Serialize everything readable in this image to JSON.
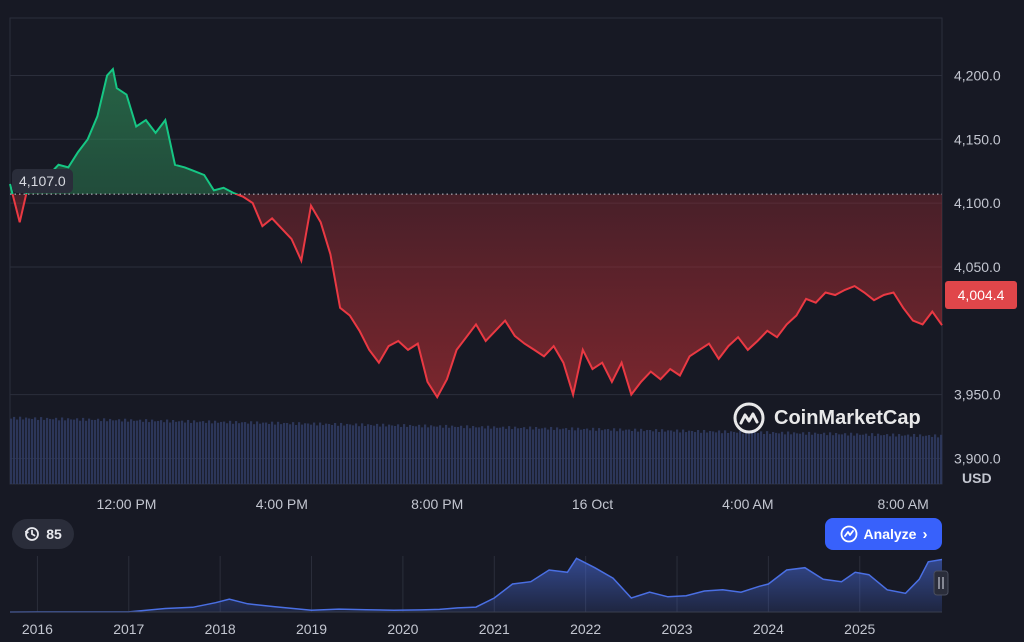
{
  "chart_data": [
    {
      "type": "line",
      "title": "",
      "reference_value": 4107.0,
      "reference_label": "4,107.0",
      "last_value_label": "4,004.4",
      "currency_label": "USD",
      "ylim": [
        3880,
        4245
      ],
      "y_ticks": [
        "4,200.0",
        "4,150.0",
        "4,100.0",
        "4,050.0",
        "3,950.0",
        "3,900.0"
      ],
      "y_tick_values": [
        4200,
        4150,
        4100,
        4050,
        3950,
        3900
      ],
      "x_ticks": [
        "12:00 PM",
        "4:00 PM",
        "8:00 PM",
        "16 Oct",
        "4:00 AM",
        "8:00 AM"
      ],
      "x_tick_hours": [
        12,
        16,
        20,
        24,
        28,
        32
      ],
      "x_range_hours": [
        9.0,
        33.0
      ],
      "series": [
        {
          "x_hours": [
            9.0,
            9.25,
            9.5,
            9.75,
            10.0,
            10.25,
            10.5,
            10.75,
            11.0,
            11.25,
            11.5,
            11.65,
            11.75,
            12.0,
            12.25,
            12.5,
            12.75,
            13.0,
            13.25,
            13.5,
            13.75,
            14.0,
            14.25,
            14.5,
            14.75,
            15.0,
            15.25,
            15.5,
            15.75,
            16.0,
            16.25,
            16.5,
            16.75,
            17.0,
            17.25,
            17.5,
            17.75,
            18.0,
            18.25,
            18.5,
            18.75,
            19.0,
            19.25,
            19.5,
            19.75,
            20.0,
            20.25,
            20.5,
            20.75,
            21.0,
            21.25,
            21.5,
            21.75,
            22.0,
            22.25,
            22.5,
            22.75,
            23.0,
            23.25,
            23.5,
            23.75,
            24.0,
            24.25,
            24.5,
            24.75,
            25.0,
            25.25,
            25.5,
            25.75,
            26.0,
            26.25,
            26.5,
            26.75,
            27.0,
            27.25,
            27.5,
            27.75,
            28.0,
            28.25,
            28.5,
            28.75,
            29.0,
            29.25,
            29.5,
            29.75,
            30.0,
            30.25,
            30.5,
            30.75,
            31.0,
            31.25,
            31.5,
            31.75,
            32.0,
            32.25,
            32.5,
            32.75,
            33.0
          ],
          "values": [
            4115,
            4085,
            4118,
            4120,
            4122,
            4130,
            4128,
            4140,
            4150,
            4168,
            4200,
            4205,
            4190,
            4185,
            4160,
            4165,
            4155,
            4165,
            4130,
            4128,
            4125,
            4122,
            4110,
            4112,
            4108,
            4105,
            4100,
            4082,
            4088,
            4080,
            4072,
            4055,
            4098,
            4085,
            4060,
            4018,
            4012,
            4000,
            3985,
            3975,
            3988,
            3992,
            3985,
            3990,
            3960,
            3948,
            3962,
            3985,
            3995,
            4005,
            3992,
            4000,
            4008,
            3996,
            3990,
            3985,
            3980,
            3988,
            3975,
            3950,
            3985,
            3970,
            3975,
            3960,
            3975,
            3950,
            3960,
            3968,
            3962,
            3970,
            3965,
            3980,
            3985,
            3990,
            3978,
            3988,
            3995,
            3985,
            3992,
            4000,
            3995,
            4005,
            4012,
            4025,
            4022,
            4030,
            4028,
            4032,
            4035,
            4030,
            4024,
            4028,
            4030,
            4018,
            4008,
            4005,
            4015,
            4004.4
          ]
        }
      ]
    },
    {
      "type": "area",
      "title": "",
      "x_ticks": [
        "2016",
        "2017",
        "2018",
        "2019",
        "2020",
        "2021",
        "2022",
        "2023",
        "2024",
        "2025"
      ],
      "x_range_years": [
        2015.7,
        2025.9
      ],
      "ylim": [
        0,
        4800
      ],
      "series": [
        {
          "x_years": [
            2015.7,
            2016.0,
            2016.5,
            2017.0,
            2017.4,
            2017.7,
            2017.95,
            2018.1,
            2018.3,
            2018.6,
            2018.8,
            2019.0,
            2019.3,
            2019.6,
            2019.9,
            2020.2,
            2020.4,
            2020.6,
            2020.8,
            2021.0,
            2021.2,
            2021.4,
            2021.6,
            2021.8,
            2021.9,
            2022.1,
            2022.3,
            2022.5,
            2022.7,
            2022.9,
            2023.1,
            2023.3,
            2023.5,
            2023.7,
            2023.9,
            2024.0,
            2024.2,
            2024.4,
            2024.6,
            2024.8,
            2024.95,
            2025.1,
            2025.3,
            2025.5,
            2025.65,
            2025.75,
            2025.9
          ],
          "values": [
            2,
            10,
            12,
            10,
            300,
            400,
            800,
            1100,
            700,
            450,
            300,
            150,
            250,
            200,
            150,
            180,
            220,
            350,
            420,
            1200,
            2400,
            2600,
            3600,
            3400,
            4600,
            3800,
            2900,
            1200,
            1700,
            1300,
            1400,
            1800,
            1900,
            1700,
            2200,
            2400,
            3600,
            3800,
            2800,
            2600,
            3400,
            3200,
            1900,
            1600,
            2800,
            4300,
            4500
          ]
        }
      ]
    }
  ],
  "ui": {
    "watermark": "CoinMarketCap",
    "badge_count": "85",
    "analyze_label": "Analyze",
    "colors": {
      "up": "#16c784",
      "down": "#ea3943",
      "accent": "#3861fb",
      "background": "#171924"
    }
  }
}
